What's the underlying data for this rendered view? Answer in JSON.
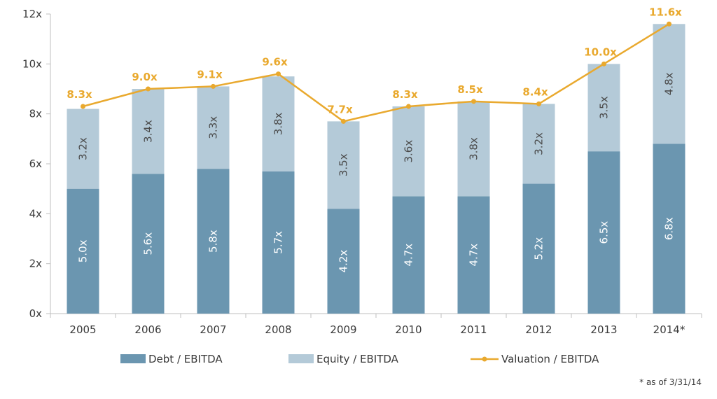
{
  "chart_data": {
    "type": "bar",
    "stacked": true,
    "categories": [
      "2005",
      "2006",
      "2007",
      "2008",
      "2009",
      "2010",
      "2011",
      "2012",
      "2013",
      "2014*"
    ],
    "series": [
      {
        "name": "Debt / EBITDA",
        "kind": "bar",
        "color": "#6b96b0",
        "values": [
          5.0,
          5.6,
          5.8,
          5.7,
          4.2,
          4.7,
          4.7,
          5.2,
          6.5,
          6.8
        ],
        "labels": [
          "5.0x",
          "5.6x",
          "5.8x",
          "5.7x",
          "4.2x",
          "4.7x",
          "4.7x",
          "5.2x",
          "6.5x",
          "6.8x"
        ]
      },
      {
        "name": "Equity / EBITDA",
        "kind": "bar",
        "color": "#b4cad8",
        "values": [
          3.2,
          3.4,
          3.3,
          3.8,
          3.5,
          3.6,
          3.8,
          3.2,
          3.5,
          4.8
        ],
        "labels": [
          "3.2x",
          "3.4x",
          "3.3x",
          "3.8x",
          "3.5x",
          "3.6x",
          "3.8x",
          "3.2x",
          "3.5x",
          "4.8x"
        ]
      },
      {
        "name": "Valuation / EBITDA",
        "kind": "line",
        "color": "#e9a92e",
        "values": [
          8.3,
          9.0,
          9.1,
          9.6,
          7.7,
          8.3,
          8.5,
          8.4,
          10.0,
          11.6
        ],
        "labels": [
          "8.3x",
          "9.0x",
          "9.1x",
          "9.6x",
          "7.7x",
          "8.3x",
          "8.5x",
          "8.4x",
          "10.0x",
          "11.6x"
        ]
      }
    ],
    "ylim": [
      0,
      12
    ],
    "yticks": [
      0,
      2,
      4,
      6,
      8,
      10,
      12
    ],
    "ytick_labels": [
      "0x",
      "2x",
      "4x",
      "6x",
      "8x",
      "10x",
      "12x"
    ],
    "grid": false,
    "legend_position": "bottom",
    "footnote": "* as of 3/31/14"
  }
}
